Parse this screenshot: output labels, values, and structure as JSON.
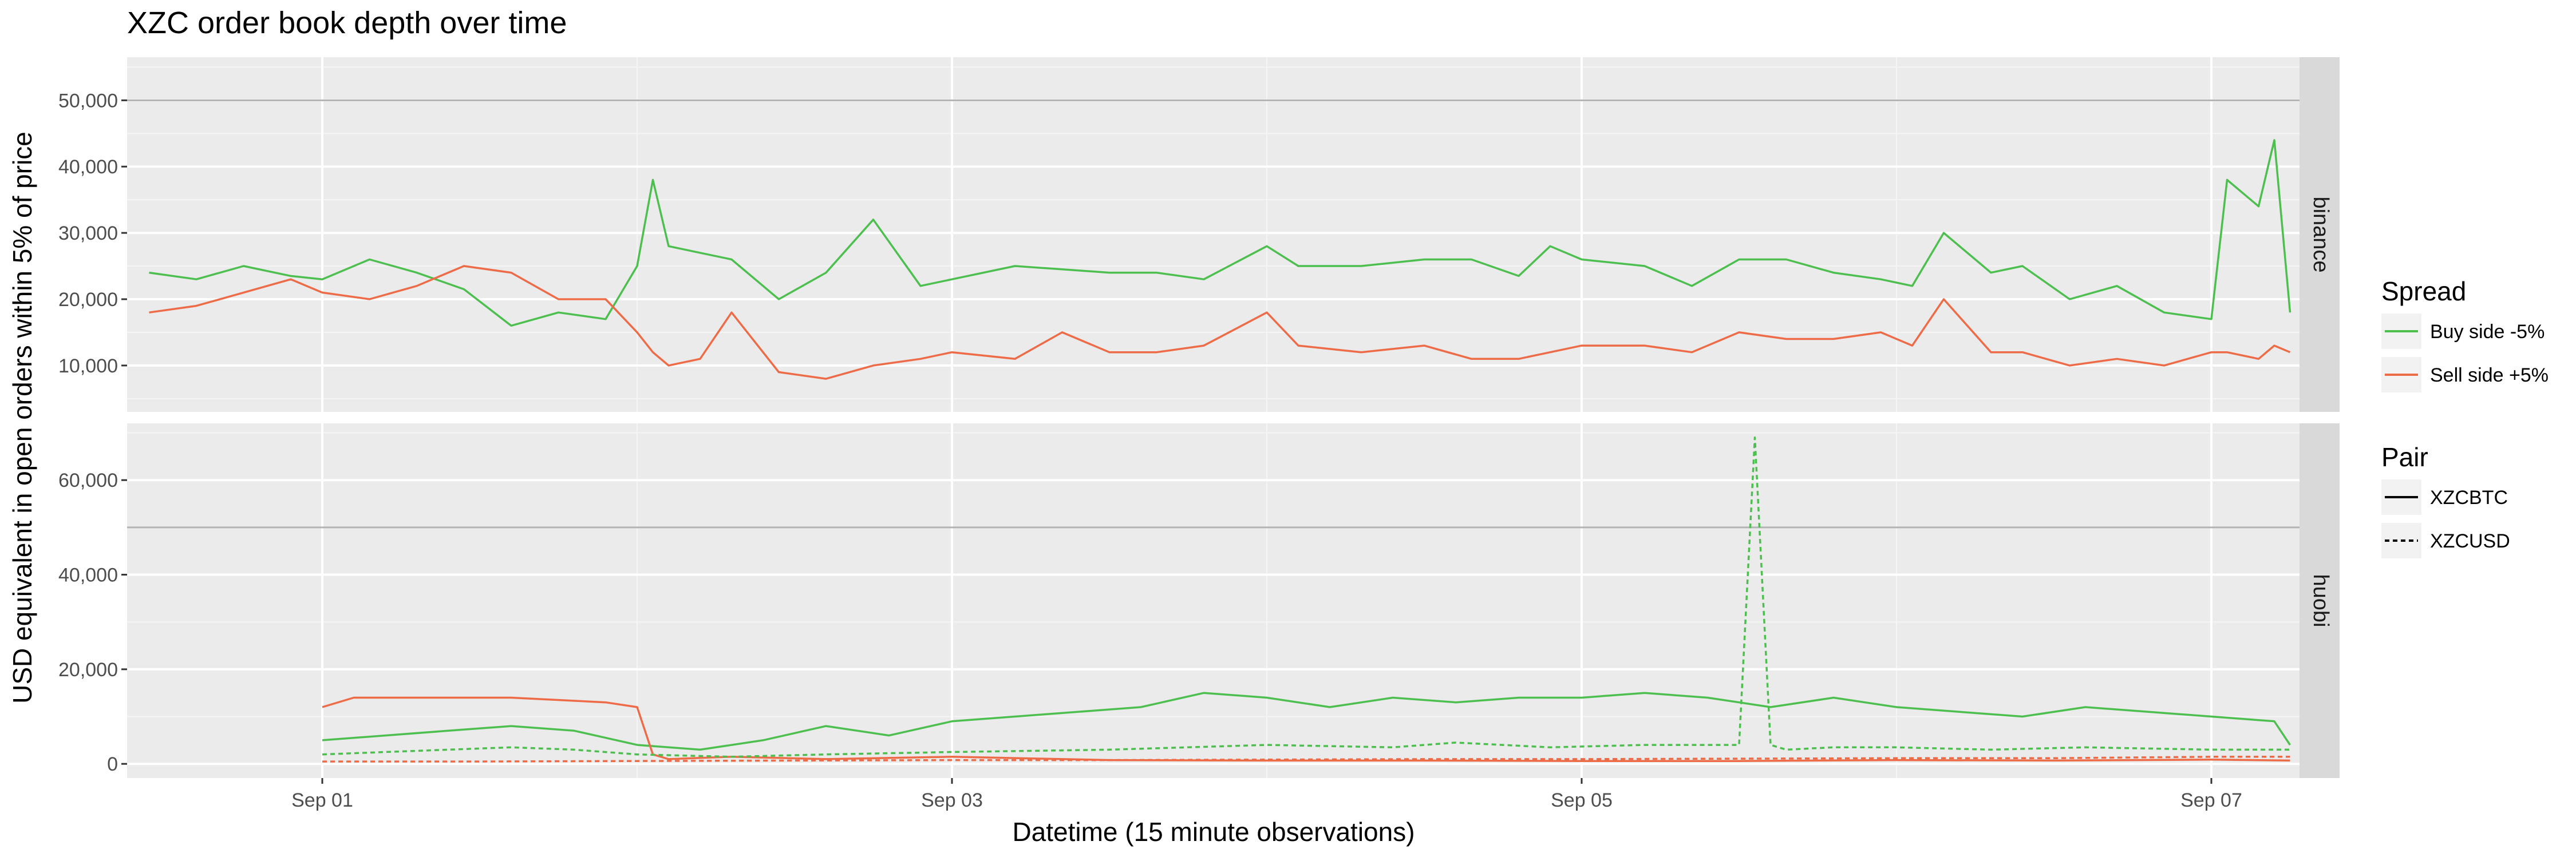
{
  "chart_data": {
    "type": "line",
    "title": "XZC  order book depth over time",
    "xlabel": "Datetime (15 minute observations)",
    "ylabel": "USD equivalent in open orders within 5% of price",
    "x_ticks": [
      "Sep 01",
      "Sep 03",
      "Sep 05",
      "Sep 07"
    ],
    "x_range_days": [
      -0.62,
      6.28
    ],
    "grid": true,
    "legend_position": "right",
    "legend": {
      "spread": {
        "title": "Spread",
        "entries": [
          {
            "label": "Buy side -5%",
            "color": "#4CBF4F"
          },
          {
            "label": "Sell side +5%",
            "color": "#EE6B47"
          }
        ]
      },
      "pair": {
        "title": "Pair",
        "entries": [
          {
            "label": "XZCBTC",
            "linetype": "solid"
          },
          {
            "label": "XZCUSD",
            "linetype": "dashed"
          }
        ]
      }
    },
    "panels": [
      {
        "name": "binance",
        "y_ticks": [
          "10,000",
          "20,000",
          "30,000",
          "40,000",
          "50,000"
        ],
        "y_tick_values": [
          10000,
          20000,
          30000,
          40000,
          50000
        ],
        "ylim": [
          3000,
          56500
        ],
        "hline": 50000,
        "series": [
          {
            "name": "Buy side -5% XZCBTC",
            "color": "#4CBF4F",
            "linetype": "solid",
            "x": [
              -0.55,
              -0.4,
              -0.25,
              -0.1,
              0.0,
              0.15,
              0.3,
              0.45,
              0.6,
              0.75,
              0.9,
              1.0,
              1.05,
              1.1,
              1.2,
              1.3,
              1.45,
              1.6,
              1.75,
              1.9,
              2.0,
              2.2,
              2.35,
              2.5,
              2.65,
              2.8,
              3.0,
              3.1,
              3.3,
              3.5,
              3.65,
              3.8,
              3.9,
              4.0,
              4.2,
              4.35,
              4.5,
              4.65,
              4.8,
              4.95,
              5.05,
              5.15,
              5.3,
              5.4,
              5.55,
              5.7,
              5.85,
              6.0,
              6.05,
              6.15,
              6.2,
              6.25
            ],
            "y": [
              24000,
              23000,
              25000,
              23500,
              23000,
              26000,
              24000,
              21500,
              16000,
              18000,
              17000,
              25000,
              38000,
              28000,
              27000,
              26000,
              20000,
              24000,
              32000,
              22000,
              23000,
              25000,
              24500,
              24000,
              24000,
              23000,
              28000,
              25000,
              25000,
              26000,
              26000,
              23500,
              28000,
              26000,
              25000,
              22000,
              26000,
              26000,
              24000,
              23000,
              22000,
              30000,
              24000,
              25000,
              20000,
              22000,
              18000,
              17000,
              38000,
              34000,
              44000,
              18000
            ]
          },
          {
            "name": "Sell side +5% XZCBTC",
            "color": "#EE6B47",
            "linetype": "solid",
            "x": [
              -0.55,
              -0.4,
              -0.25,
              -0.1,
              0.0,
              0.15,
              0.3,
              0.45,
              0.6,
              0.75,
              0.9,
              1.0,
              1.05,
              1.1,
              1.2,
              1.3,
              1.45,
              1.6,
              1.75,
              1.9,
              2.0,
              2.2,
              2.35,
              2.5,
              2.65,
              2.8,
              3.0,
              3.1,
              3.3,
              3.5,
              3.65,
              3.8,
              3.9,
              4.0,
              4.2,
              4.35,
              4.5,
              4.65,
              4.8,
              4.95,
              5.05,
              5.15,
              5.3,
              5.4,
              5.55,
              5.7,
              5.85,
              6.0,
              6.05,
              6.15,
              6.2,
              6.25
            ],
            "y": [
              18000,
              19000,
              21000,
              23000,
              21000,
              20000,
              22000,
              25000,
              24000,
              20000,
              20000,
              15000,
              12000,
              10000,
              11000,
              18000,
              9000,
              8000,
              10000,
              11000,
              12000,
              11000,
              15000,
              12000,
              12000,
              13000,
              18000,
              13000,
              12000,
              13000,
              11000,
              11000,
              12000,
              13000,
              13000,
              12000,
              15000,
              14000,
              14000,
              15000,
              13000,
              20000,
              12000,
              12000,
              10000,
              11000,
              10000,
              12000,
              12000,
              11000,
              13000,
              12000
            ]
          }
        ]
      },
      {
        "name": "huobi",
        "y_ticks": [
          "0",
          "20,000",
          "40,000",
          "60,000"
        ],
        "y_tick_values": [
          0,
          20000,
          40000,
          60000
        ],
        "ylim": [
          -3000,
          72000
        ],
        "hline": 50000,
        "series": [
          {
            "name": "Buy side -5% XZCBTC",
            "color": "#4CBF4F",
            "linetype": "solid",
            "x": [
              0.0,
              0.2,
              0.4,
              0.6,
              0.8,
              1.0,
              1.2,
              1.4,
              1.6,
              1.8,
              2.0,
              2.2,
              2.4,
              2.6,
              2.8,
              3.0,
              3.2,
              3.4,
              3.6,
              3.8,
              4.0,
              4.2,
              4.4,
              4.6,
              4.8,
              5.0,
              5.2,
              5.4,
              5.6,
              5.8,
              6.0,
              6.2,
              6.25
            ],
            "y": [
              5000,
              6000,
              7000,
              8000,
              7000,
              4000,
              3000,
              5000,
              8000,
              6000,
              9000,
              10000,
              11000,
              12000,
              15000,
              14000,
              12000,
              14000,
              13000,
              14000,
              14000,
              15000,
              14000,
              12000,
              14000,
              12000,
              11000,
              10000,
              12000,
              11000,
              10000,
              9000,
              4000
            ]
          },
          {
            "name": "Sell side +5% XZCBTC",
            "color": "#EE6B47",
            "linetype": "solid",
            "x": [
              0.0,
              0.1,
              0.3,
              0.6,
              0.9,
              1.0,
              1.05,
              1.1,
              1.3,
              1.6,
              2.0,
              2.5,
              3.0,
              3.5,
              4.0,
              4.5,
              5.0,
              5.5,
              6.0,
              6.25
            ],
            "y": [
              12000,
              14000,
              14000,
              14000,
              13000,
              12000,
              2000,
              1000,
              1500,
              1000,
              1500,
              800,
              700,
              700,
              600,
              600,
              800,
              700,
              900,
              700
            ]
          },
          {
            "name": "Buy side -5% XZCUSD",
            "color": "#4CBF4F",
            "linetype": "dashed",
            "x": [
              0.0,
              0.2,
              0.4,
              0.6,
              0.8,
              1.0,
              1.3,
              1.6,
              2.0,
              2.5,
              3.0,
              3.4,
              3.6,
              3.9,
              4.2,
              4.5,
              4.55,
              4.6,
              4.65,
              4.8,
              5.0,
              5.3,
              5.6,
              6.0,
              6.25
            ],
            "y": [
              2000,
              2500,
              3000,
              3500,
              3000,
              2000,
              1500,
              2000,
              2500,
              3000,
              4000,
              3500,
              4500,
              3500,
              4000,
              4000,
              69000,
              4000,
              3000,
              3500,
              3500,
              3000,
              3500,
              3000,
              3000
            ]
          },
          {
            "name": "Sell side +5% XZCUSD",
            "color": "#EE6B47",
            "linetype": "dashed",
            "x": [
              0.0,
              0.5,
              1.0,
              1.5,
              2.0,
              2.5,
              3.0,
              3.5,
              4.0,
              4.5,
              5.0,
              5.5,
              6.0,
              6.25
            ],
            "y": [
              500,
              500,
              600,
              700,
              800,
              800,
              900,
              1000,
              1000,
              1100,
              1200,
              1200,
              1500,
              1500
            ]
          }
        ]
      }
    ]
  }
}
